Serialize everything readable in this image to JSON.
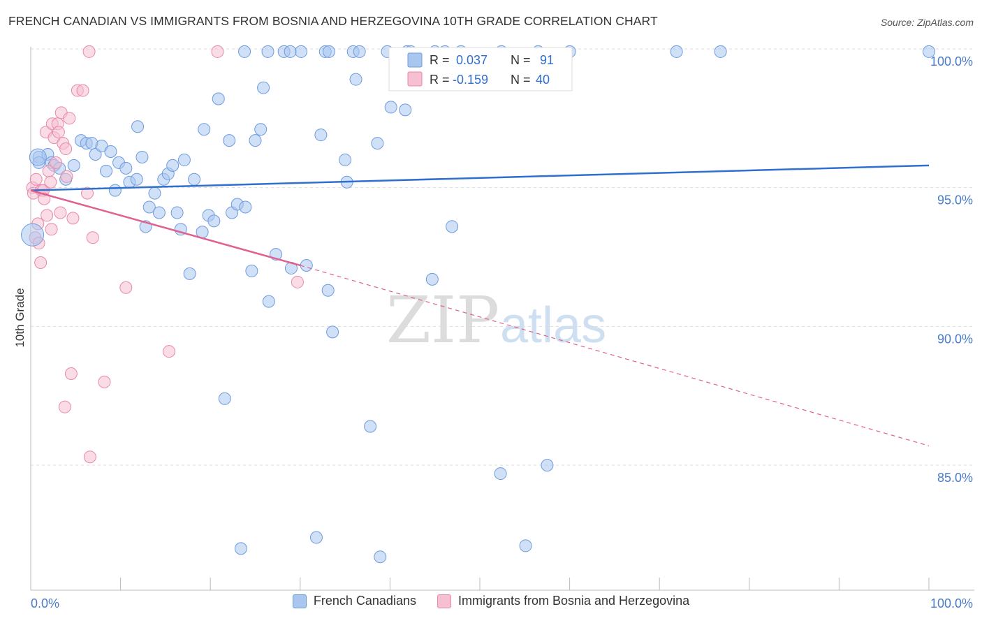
{
  "chart_data": {
    "type": "scatter",
    "title": "FRENCH CANADIAN VS IMMIGRANTS FROM BOSNIA AND HERZEGOVINA 10TH GRADE CORRELATION CHART",
    "source": "Source: ZipAtlas.com",
    "xlabel": "",
    "ylabel": "10th Grade",
    "xlim": [
      0,
      100
    ],
    "ylim": [
      80.5,
      100.2
    ],
    "x_tick_labels": [
      {
        "value": 0,
        "label": "0.0%"
      },
      {
        "value": 100,
        "label": "100.0%"
      }
    ],
    "y_ticks": [
      {
        "value": 100,
        "label": "100.0%"
      },
      {
        "value": 95,
        "label": "95.0%"
      },
      {
        "value": 90,
        "label": "90.0%"
      },
      {
        "value": 85,
        "label": "85.0%"
      }
    ],
    "grid": true,
    "watermark": {
      "part1": "ZIP",
      "part2": "atlas"
    },
    "legend_stats": [
      {
        "r_label": "R =",
        "r_value": "0.037",
        "n_label": "N =",
        "n_value": "91"
      },
      {
        "r_label": "R =",
        "r_value": "-0.159",
        "n_label": "N =",
        "n_value": "40"
      }
    ],
    "series": [
      {
        "name": "French Canadians",
        "color": "#a9c7ee",
        "stroke": "#6d9be0",
        "trend_color": "#2f6fcf",
        "trend": {
          "x0": 0,
          "y0": 94.9,
          "x1": 100,
          "y1": 95.8
        },
        "points": [
          [
            0.9,
            96.1
          ],
          [
            0.9,
            95.9
          ],
          [
            1.9,
            96.2
          ],
          [
            2.3,
            95.9
          ],
          [
            2.6,
            95.8
          ],
          [
            3.2,
            95.7
          ],
          [
            3.9,
            95.3
          ],
          [
            4.8,
            95.8
          ],
          [
            5.6,
            96.7
          ],
          [
            6.2,
            96.6
          ],
          [
            6.8,
            96.6
          ],
          [
            7.2,
            96.2
          ],
          [
            7.9,
            96.5
          ],
          [
            8.4,
            95.6
          ],
          [
            8.9,
            96.3
          ],
          [
            9.4,
            94.9
          ],
          [
            9.8,
            95.9
          ],
          [
            10.6,
            95.7
          ],
          [
            11.0,
            95.2
          ],
          [
            11.8,
            95.3
          ],
          [
            11.9,
            97.2
          ],
          [
            12.4,
            96.1
          ],
          [
            12.8,
            93.6
          ],
          [
            13.2,
            94.3
          ],
          [
            13.8,
            94.8
          ],
          [
            14.3,
            94.1
          ],
          [
            14.8,
            95.3
          ],
          [
            15.3,
            95.5
          ],
          [
            15.8,
            95.8
          ],
          [
            16.3,
            94.1
          ],
          [
            16.7,
            93.5
          ],
          [
            17.1,
            96.0
          ],
          [
            17.7,
            91.9
          ],
          [
            18.2,
            95.3
          ],
          [
            19.1,
            93.4
          ],
          [
            19.3,
            97.1
          ],
          [
            19.8,
            94.0
          ],
          [
            20.4,
            93.8
          ],
          [
            20.9,
            98.2
          ],
          [
            21.6,
            87.4
          ],
          [
            22.1,
            96.7
          ],
          [
            22.4,
            94.1
          ],
          [
            23.0,
            94.4
          ],
          [
            23.4,
            82.0
          ],
          [
            23.9,
            94.3
          ],
          [
            24.6,
            92.0
          ],
          [
            25.0,
            96.7
          ],
          [
            25.6,
            97.1
          ],
          [
            25.9,
            98.6
          ],
          [
            26.5,
            90.9
          ],
          [
            27.3,
            92.6
          ],
          [
            29.0,
            92.1
          ],
          [
            30.7,
            92.2
          ],
          [
            31.8,
            82.4
          ],
          [
            32.3,
            96.9
          ],
          [
            33.1,
            91.3
          ],
          [
            33.6,
            89.8
          ],
          [
            35.0,
            96.0
          ],
          [
            35.2,
            95.2
          ],
          [
            36.2,
            98.9
          ],
          [
            37.8,
            86.4
          ],
          [
            38.6,
            96.6
          ],
          [
            38.9,
            81.7
          ],
          [
            40.1,
            97.9
          ],
          [
            41.7,
            97.8
          ],
          [
            44.7,
            91.7
          ],
          [
            46.9,
            93.6
          ],
          [
            52.3,
            84.7
          ],
          [
            55.1,
            82.1
          ],
          [
            57.5,
            85.0
          ],
          [
            23.8,
            99.9
          ],
          [
            26.4,
            99.9
          ],
          [
            28.2,
            99.9
          ],
          [
            28.9,
            99.9
          ],
          [
            30.1,
            99.9
          ],
          [
            32.8,
            99.9
          ],
          [
            33.2,
            99.9
          ],
          [
            35.9,
            99.9
          ],
          [
            36.6,
            99.9
          ],
          [
            39.7,
            99.9
          ],
          [
            41.9,
            99.9
          ],
          [
            42.3,
            99.9
          ],
          [
            45.0,
            99.9
          ],
          [
            46.1,
            99.9
          ],
          [
            47.9,
            99.9
          ],
          [
            52.4,
            99.9
          ],
          [
            56.5,
            99.9
          ],
          [
            60.0,
            99.9
          ],
          [
            71.9,
            99.9
          ],
          [
            76.8,
            99.9
          ],
          [
            100.0,
            99.9
          ]
        ]
      },
      {
        "name": "Immigrants from Bosnia and Herzegovina",
        "color": "#f6bfd2",
        "stroke": "#e889aa",
        "trend_color": "#e06090",
        "trend": {
          "x0": 0,
          "y0": 94.9,
          "x1": 30,
          "y1": 92.2
        },
        "trend_dashed": {
          "x0": 30,
          "y0": 92.2,
          "x1": 100,
          "y1": 85.7
        },
        "points": [
          [
            0.2,
            95.0
          ],
          [
            0.3,
            94.8
          ],
          [
            0.6,
            95.3
          ],
          [
            0.8,
            93.7
          ],
          [
            1.1,
            92.3
          ],
          [
            1.2,
            94.9
          ],
          [
            1.4,
            94.9
          ],
          [
            1.5,
            94.6
          ],
          [
            1.7,
            97.0
          ],
          [
            1.8,
            94.0
          ],
          [
            2.0,
            95.6
          ],
          [
            2.2,
            95.2
          ],
          [
            2.3,
            93.5
          ],
          [
            2.4,
            97.3
          ],
          [
            2.6,
            96.8
          ],
          [
            2.8,
            95.9
          ],
          [
            3.0,
            97.3
          ],
          [
            3.1,
            97.0
          ],
          [
            3.3,
            94.1
          ],
          [
            3.4,
            97.7
          ],
          [
            3.6,
            96.6
          ],
          [
            3.8,
            87.1
          ],
          [
            3.9,
            96.4
          ],
          [
            4.0,
            95.4
          ],
          [
            4.3,
            97.5
          ],
          [
            4.5,
            88.3
          ],
          [
            4.7,
            93.9
          ],
          [
            5.2,
            98.5
          ],
          [
            5.8,
            98.5
          ],
          [
            6.3,
            94.8
          ],
          [
            6.5,
            99.9
          ],
          [
            6.6,
            85.3
          ],
          [
            6.9,
            93.2
          ],
          [
            8.2,
            88.0
          ],
          [
            10.6,
            91.4
          ],
          [
            15.4,
            89.1
          ],
          [
            20.8,
            99.9
          ],
          [
            29.7,
            91.6
          ],
          [
            0.5,
            93.2
          ],
          [
            0.9,
            93.0
          ]
        ]
      }
    ]
  }
}
